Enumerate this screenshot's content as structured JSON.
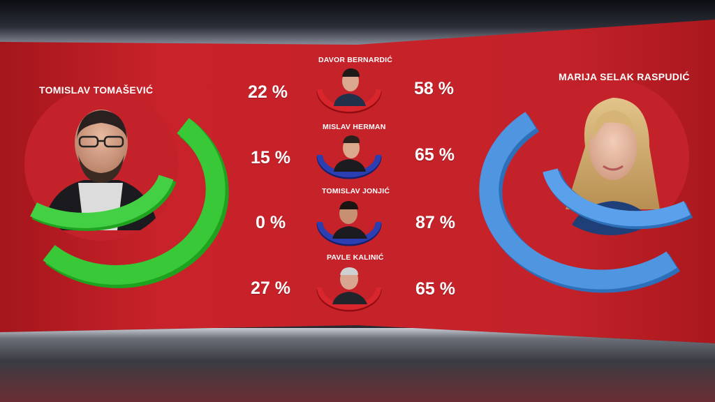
{
  "left_candidate": {
    "name": "TOMISLAV TOMAŠEVIĆ",
    "color": "#2ec42e"
  },
  "right_candidate": {
    "name": "MARIJA SELAK RASPUDIĆ",
    "color": "#3f8ede"
  },
  "rows": [
    {
      "name": "DAVOR BERNARDIĆ",
      "left_pct": "22 %",
      "right_pct": "58 %",
      "arc_color": "#c8222a"
    },
    {
      "name": "MISLAV HERMAN",
      "left_pct": "15 %",
      "right_pct": "65 %",
      "arc_color": "#2a3aa8"
    },
    {
      "name": "TOMISLAV JONJIĆ",
      "left_pct": "0 %",
      "right_pct": "87 %",
      "arc_color": "#2a3aa8"
    },
    {
      "name": "PAVLE KALINIĆ",
      "left_pct": "27 %",
      "right_pct": "65 %",
      "arc_color": "#c8222a"
    }
  ]
}
